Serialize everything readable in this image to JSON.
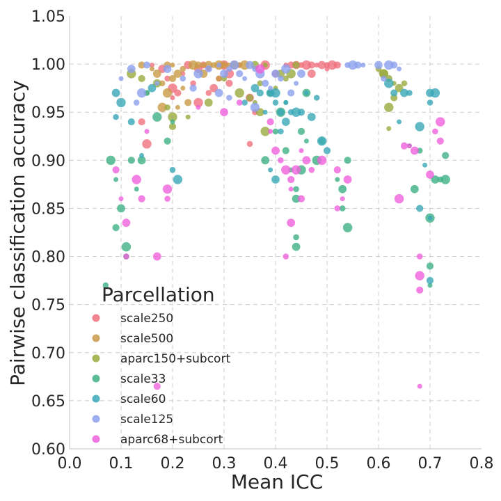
{
  "chart_data": {
    "type": "scatter",
    "title": "",
    "xlabel": "Mean ICC",
    "ylabel": "Pairwise classification accuracy",
    "xlim": [
      0.0,
      0.8
    ],
    "ylim": [
      0.6,
      1.05
    ],
    "xticks": [
      "0.0",
      "0.1",
      "0.2",
      "0.3",
      "0.4",
      "0.5",
      "0.6",
      "0.7",
      "0.8"
    ],
    "yticks": [
      "0.60",
      "0.65",
      "0.70",
      "0.75",
      "0.80",
      "0.85",
      "0.90",
      "0.95",
      "1.00",
      "1.05"
    ],
    "grid": true,
    "legend": {
      "title": "Parcellation",
      "placement": "lower-left"
    },
    "series": [
      {
        "name": "scale250",
        "color": "#f0707e",
        "points": [
          [
            0.16,
            0.999
          ],
          [
            0.18,
            0.995
          ],
          [
            0.19,
            0.985
          ],
          [
            0.2,
            0.975
          ],
          [
            0.21,
            0.97
          ],
          [
            0.22,
            0.99
          ],
          [
            0.23,
            0.999
          ],
          [
            0.24,
            0.98
          ],
          [
            0.25,
            0.96
          ],
          [
            0.26,
            0.999
          ],
          [
            0.27,
            0.995
          ],
          [
            0.28,
            0.975
          ],
          [
            0.29,
            0.985
          ],
          [
            0.3,
            0.999
          ],
          [
            0.31,
            0.98
          ],
          [
            0.33,
            0.999
          ],
          [
            0.35,
            0.965
          ],
          [
            0.36,
            0.95
          ],
          [
            0.38,
            0.999
          ],
          [
            0.4,
            0.99
          ],
          [
            0.42,
            0.999
          ],
          [
            0.44,
            0.999
          ],
          [
            0.45,
            0.999
          ],
          [
            0.46,
            0.999
          ],
          [
            0.47,
            0.999
          ],
          [
            0.48,
            0.999
          ],
          [
            0.49,
            0.999
          ],
          [
            0.5,
            0.999
          ],
          [
            0.51,
            0.999
          ],
          [
            0.52,
            0.999
          ],
          [
            0.5,
            0.995
          ],
          [
            0.47,
            0.99
          ],
          [
            0.35,
            0.917
          ],
          [
            0.15,
            0.917
          ],
          [
            0.14,
            0.94
          ],
          [
            0.2,
            0.965
          ],
          [
            0.25,
            0.995
          ],
          [
            0.27,
            0.97
          ],
          [
            0.31,
            0.99
          ],
          [
            0.43,
            0.999
          ]
        ]
      },
      {
        "name": "scale500",
        "color": "#c99a46",
        "points": [
          [
            0.14,
            0.999
          ],
          [
            0.16,
            0.995
          ],
          [
            0.17,
            0.99
          ],
          [
            0.18,
            0.98
          ],
          [
            0.18,
            0.955
          ],
          [
            0.19,
            0.999
          ],
          [
            0.2,
            0.999
          ],
          [
            0.21,
            0.99
          ],
          [
            0.22,
            0.995
          ],
          [
            0.24,
            0.999
          ],
          [
            0.25,
            0.999
          ],
          [
            0.26,
            0.999
          ],
          [
            0.27,
            0.999
          ],
          [
            0.28,
            0.999
          ],
          [
            0.29,
            0.999
          ],
          [
            0.3,
            0.999
          ],
          [
            0.31,
            0.999
          ],
          [
            0.32,
            0.999
          ],
          [
            0.33,
            0.999
          ],
          [
            0.34,
            0.999
          ],
          [
            0.2,
            0.985
          ],
          [
            0.22,
            0.975
          ],
          [
            0.26,
            0.99
          ],
          [
            0.29,
            0.985
          ],
          [
            0.19,
            0.97
          ],
          [
            0.23,
            0.96
          ],
          [
            0.21,
            0.955
          ]
        ]
      },
      {
        "name": "aparc150+subcort",
        "color": "#9aaa3e",
        "points": [
          [
            0.12,
            0.99
          ],
          [
            0.14,
            0.985
          ],
          [
            0.15,
            0.97
          ],
          [
            0.17,
            0.98
          ],
          [
            0.19,
            0.955
          ],
          [
            0.2,
            0.945
          ],
          [
            0.2,
            0.935
          ],
          [
            0.23,
            0.945
          ],
          [
            0.27,
            0.96
          ],
          [
            0.3,
            0.985
          ],
          [
            0.33,
            0.97
          ],
          [
            0.35,
            0.965
          ],
          [
            0.36,
            0.96
          ],
          [
            0.37,
            0.95
          ],
          [
            0.37,
            0.98
          ],
          [
            0.38,
            0.93
          ],
          [
            0.39,
            0.97
          ],
          [
            0.4,
            0.975
          ],
          [
            0.41,
            0.99
          ],
          [
            0.42,
            0.985
          ],
          [
            0.43,
            0.99
          ],
          [
            0.44,
            0.999
          ],
          [
            0.38,
            0.999
          ],
          [
            0.36,
            0.999
          ],
          [
            0.6,
            0.995
          ],
          [
            0.61,
            0.99
          ],
          [
            0.62,
            0.985
          ],
          [
            0.63,
            0.98
          ],
          [
            0.64,
            0.975
          ],
          [
            0.65,
            0.98
          ],
          [
            0.62,
            0.955
          ],
          [
            0.63,
            0.965
          ],
          [
            0.62,
            0.933
          ],
          [
            0.61,
            0.99
          ]
        ]
      },
      {
        "name": "scale33",
        "color": "#3fb084",
        "points": [
          [
            0.07,
            0.77
          ],
          [
            0.08,
            0.9
          ],
          [
            0.09,
            0.83
          ],
          [
            0.09,
            0.88
          ],
          [
            0.1,
            0.85
          ],
          [
            0.11,
            0.8
          ],
          [
            0.11,
            0.81
          ],
          [
            0.12,
            0.9
          ],
          [
            0.13,
            0.87
          ],
          [
            0.14,
            0.9
          ],
          [
            0.15,
            0.97
          ],
          [
            0.17,
            0.945
          ],
          [
            0.19,
            0.92
          ],
          [
            0.2,
            0.94
          ],
          [
            0.38,
            0.9
          ],
          [
            0.4,
            0.93
          ],
          [
            0.41,
            0.95
          ],
          [
            0.42,
            0.91
          ],
          [
            0.43,
            0.89
          ],
          [
            0.44,
            0.86
          ],
          [
            0.44,
            0.87
          ],
          [
            0.45,
            0.89
          ],
          [
            0.45,
            0.93
          ],
          [
            0.46,
            0.92
          ],
          [
            0.44,
            0.81
          ],
          [
            0.44,
            0.82
          ],
          [
            0.48,
            0.9
          ],
          [
            0.49,
            0.92
          ],
          [
            0.52,
            0.88
          ],
          [
            0.53,
            0.87
          ],
          [
            0.53,
            0.85
          ],
          [
            0.54,
            0.83
          ],
          [
            0.54,
            0.9
          ],
          [
            0.66,
            0.915
          ],
          [
            0.67,
            0.87
          ],
          [
            0.68,
            0.91
          ],
          [
            0.7,
            0.84
          ],
          [
            0.7,
            0.79
          ],
          [
            0.7,
            0.77
          ],
          [
            0.71,
            0.88
          ],
          [
            0.72,
            0.88
          ],
          [
            0.73,
            0.88
          ],
          [
            0.73,
            0.905
          ],
          [
            0.42,
            0.96
          ],
          [
            0.46,
            0.97
          ],
          [
            0.39,
            0.97
          ]
        ]
      },
      {
        "name": "scale60",
        "color": "#3aa8b8",
        "points": [
          [
            0.09,
            0.97
          ],
          [
            0.09,
            0.945
          ],
          [
            0.1,
            0.96
          ],
          [
            0.12,
            0.94
          ],
          [
            0.14,
            0.905
          ],
          [
            0.16,
            0.975
          ],
          [
            0.2,
            0.89
          ],
          [
            0.21,
            0.88
          ],
          [
            0.37,
            0.97
          ],
          [
            0.38,
            0.95
          ],
          [
            0.39,
            0.97
          ],
          [
            0.4,
            0.96
          ],
          [
            0.4,
            0.97
          ],
          [
            0.41,
            0.95
          ],
          [
            0.42,
            0.96
          ],
          [
            0.42,
            0.94
          ],
          [
            0.43,
            0.95
          ],
          [
            0.44,
            0.95
          ],
          [
            0.45,
            0.95
          ],
          [
            0.46,
            0.97
          ],
          [
            0.47,
            0.945
          ],
          [
            0.48,
            0.965
          ],
          [
            0.49,
            0.92
          ],
          [
            0.5,
            0.91
          ],
          [
            0.39,
            0.89
          ],
          [
            0.4,
            0.88
          ],
          [
            0.41,
            0.93
          ],
          [
            0.62,
            0.98
          ],
          [
            0.63,
            0.97
          ],
          [
            0.64,
            0.94
          ],
          [
            0.65,
            0.97
          ],
          [
            0.66,
            0.97
          ],
          [
            0.68,
            0.935
          ],
          [
            0.68,
            0.85
          ],
          [
            0.69,
            0.895
          ],
          [
            0.7,
            0.97
          ],
          [
            0.7,
            0.96
          ],
          [
            0.71,
            0.97
          ],
          [
            0.7,
            0.775
          ],
          [
            0.7,
            0.84
          ],
          [
            0.36,
            0.975
          ],
          [
            0.34,
            0.96
          ]
        ]
      },
      {
        "name": "scale125",
        "color": "#8ca0ee",
        "points": [
          [
            0.1,
            0.985
          ],
          [
            0.12,
            0.995
          ],
          [
            0.13,
            0.96
          ],
          [
            0.14,
            0.97
          ],
          [
            0.15,
            0.999
          ],
          [
            0.17,
            0.98
          ],
          [
            0.19,
            0.995
          ],
          [
            0.22,
            0.985
          ],
          [
            0.25,
            0.99
          ],
          [
            0.27,
            0.995
          ],
          [
            0.29,
            0.999
          ],
          [
            0.3,
            0.99
          ],
          [
            0.31,
            0.995
          ],
          [
            0.32,
            0.999
          ],
          [
            0.33,
            0.99
          ],
          [
            0.34,
            0.985
          ],
          [
            0.35,
            0.999
          ],
          [
            0.36,
            0.995
          ],
          [
            0.37,
            0.99
          ],
          [
            0.38,
            0.98
          ],
          [
            0.39,
            0.975
          ],
          [
            0.4,
            0.99
          ],
          [
            0.41,
            0.985
          ],
          [
            0.42,
            0.995
          ],
          [
            0.43,
            0.97
          ],
          [
            0.44,
            0.98
          ],
          [
            0.45,
            0.99
          ],
          [
            0.54,
            0.999
          ],
          [
            0.55,
            0.999
          ],
          [
            0.56,
            0.999
          ],
          [
            0.57,
            0.999
          ],
          [
            0.6,
            0.999
          ],
          [
            0.61,
            0.985
          ],
          [
            0.62,
            0.999
          ],
          [
            0.63,
            0.999
          ],
          [
            0.64,
            0.995
          ],
          [
            0.29,
            0.97
          ],
          [
            0.31,
            0.965
          ],
          [
            0.36,
            0.955
          ],
          [
            0.24,
            0.975
          ]
        ]
      },
      {
        "name": "aparc68+subcort",
        "color": "#ef62dc",
        "points": [
          [
            0.09,
            0.89
          ],
          [
            0.1,
            0.86
          ],
          [
            0.11,
            0.835
          ],
          [
            0.11,
            0.8
          ],
          [
            0.13,
            0.88
          ],
          [
            0.14,
            0.86
          ],
          [
            0.15,
            0.93
          ],
          [
            0.17,
            0.8
          ],
          [
            0.19,
            0.86
          ],
          [
            0.19,
            0.87
          ],
          [
            0.17,
            0.665
          ],
          [
            0.25,
            0.955
          ],
          [
            0.3,
            0.95
          ],
          [
            0.33,
            0.96
          ],
          [
            0.37,
            0.995
          ],
          [
            0.39,
            0.94
          ],
          [
            0.39,
            0.93
          ],
          [
            0.4,
            0.91
          ],
          [
            0.41,
            0.9
          ],
          [
            0.42,
            0.89
          ],
          [
            0.43,
            0.88
          ],
          [
            0.43,
            0.87
          ],
          [
            0.43,
            0.835
          ],
          [
            0.42,
            0.8
          ],
          [
            0.44,
            0.89
          ],
          [
            0.45,
            0.86
          ],
          [
            0.45,
            0.91
          ],
          [
            0.46,
            0.9
          ],
          [
            0.47,
            0.89
          ],
          [
            0.49,
            0.9
          ],
          [
            0.52,
            0.89
          ],
          [
            0.53,
            0.86
          ],
          [
            0.54,
            0.88
          ],
          [
            0.52,
            0.85
          ],
          [
            0.64,
            0.86
          ],
          [
            0.65,
            0.915
          ],
          [
            0.66,
            0.915
          ],
          [
            0.67,
            0.91
          ],
          [
            0.68,
            0.8
          ],
          [
            0.68,
            0.78
          ],
          [
            0.68,
            0.765
          ],
          [
            0.68,
            0.665
          ],
          [
            0.7,
            0.885
          ],
          [
            0.71,
            0.93
          ],
          [
            0.72,
            0.94
          ],
          [
            0.72,
            0.92
          ]
        ]
      }
    ]
  }
}
